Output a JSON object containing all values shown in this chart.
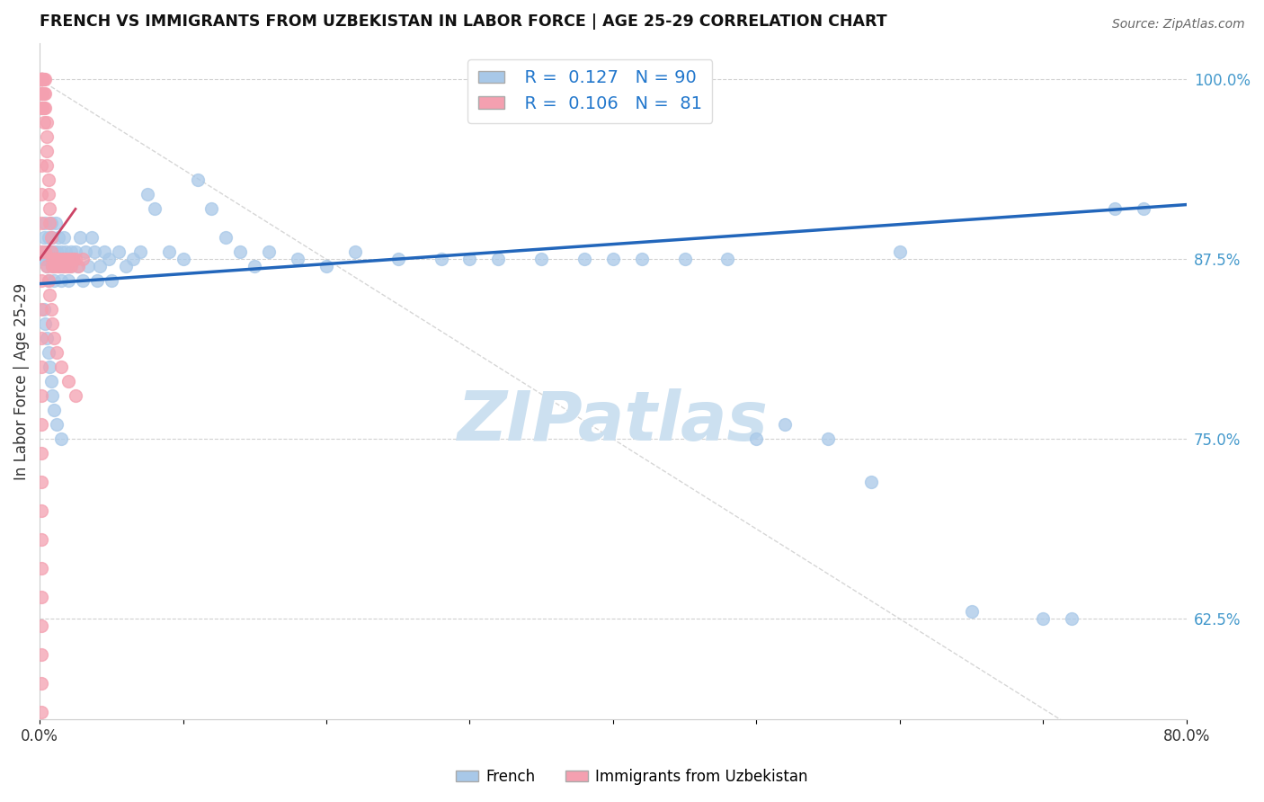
{
  "title": "FRENCH VS IMMIGRANTS FROM UZBEKISTAN IN LABOR FORCE | AGE 25-29 CORRELATION CHART",
  "source": "Source: ZipAtlas.com",
  "ylabel": "In Labor Force | Age 25-29",
  "yticks_right": [
    0.625,
    0.75,
    0.875,
    1.0
  ],
  "ytick_labels_right": [
    "62.5%",
    "75.0%",
    "87.5%",
    "100.0%"
  ],
  "legend_french_R": "0.127",
  "legend_french_N": "90",
  "legend_uzbek_R": "0.106",
  "legend_uzbek_N": "81",
  "french_color": "#a8c8e8",
  "uzbek_color": "#f4a0b0",
  "french_line_color": "#2266bb",
  "uzbek_line_color": "#cc4466",
  "watermark": "ZIPatlas",
  "watermark_color": "#cce0f0",
  "ref_line_color": "#cccccc",
  "ymin": 0.555,
  "ymax": 1.025,
  "xmin": 0.0,
  "xmax": 0.8,
  "french_line_x0": 0.0,
  "french_line_y0": 0.858,
  "french_line_x1": 0.8,
  "french_line_y1": 0.913,
  "uzbek_line_x0": 0.0,
  "uzbek_line_y0": 0.875,
  "uzbek_line_x1": 0.025,
  "uzbek_line_y1": 0.91,
  "french_pts_x": [
    0.002,
    0.003,
    0.003,
    0.004,
    0.004,
    0.005,
    0.005,
    0.006,
    0.006,
    0.007,
    0.007,
    0.008,
    0.008,
    0.009,
    0.009,
    0.01,
    0.01,
    0.011,
    0.012,
    0.013,
    0.014,
    0.015,
    0.015,
    0.016,
    0.017,
    0.018,
    0.02,
    0.021,
    0.022,
    0.023,
    0.025,
    0.026,
    0.028,
    0.03,
    0.032,
    0.034,
    0.036,
    0.038,
    0.04,
    0.042,
    0.045,
    0.048,
    0.05,
    0.055,
    0.06,
    0.065,
    0.07,
    0.075,
    0.08,
    0.09,
    0.1,
    0.11,
    0.12,
    0.13,
    0.14,
    0.15,
    0.16,
    0.18,
    0.2,
    0.22,
    0.25,
    0.28,
    0.3,
    0.32,
    0.35,
    0.38,
    0.4,
    0.42,
    0.45,
    0.48,
    0.5,
    0.52,
    0.55,
    0.58,
    0.6,
    0.65,
    0.7,
    0.72,
    0.003,
    0.004,
    0.005,
    0.006,
    0.007,
    0.008,
    0.009,
    0.01,
    0.012,
    0.015,
    0.75,
    0.77
  ],
  "french_pts_y": [
    0.88,
    0.89,
    0.875,
    0.9,
    0.875,
    0.88,
    0.87,
    0.89,
    0.86,
    0.88,
    0.875,
    0.9,
    0.88,
    0.89,
    0.87,
    0.86,
    0.88,
    0.9,
    0.88,
    0.89,
    0.87,
    0.86,
    0.88,
    0.87,
    0.89,
    0.88,
    0.86,
    0.87,
    0.88,
    0.875,
    0.88,
    0.87,
    0.89,
    0.86,
    0.88,
    0.87,
    0.89,
    0.88,
    0.86,
    0.87,
    0.88,
    0.875,
    0.86,
    0.88,
    0.87,
    0.875,
    0.88,
    0.92,
    0.91,
    0.88,
    0.875,
    0.93,
    0.91,
    0.89,
    0.88,
    0.87,
    0.88,
    0.875,
    0.87,
    0.88,
    0.875,
    0.875,
    0.875,
    0.875,
    0.875,
    0.875,
    0.875,
    0.875,
    0.875,
    0.875,
    0.75,
    0.76,
    0.75,
    0.72,
    0.88,
    0.63,
    0.625,
    0.625,
    0.84,
    0.83,
    0.82,
    0.81,
    0.8,
    0.79,
    0.78,
    0.77,
    0.76,
    0.75,
    0.91,
    0.91
  ],
  "uzbek_pts_x": [
    0.001,
    0.001,
    0.001,
    0.001,
    0.001,
    0.001,
    0.001,
    0.001,
    0.002,
    0.002,
    0.002,
    0.002,
    0.002,
    0.003,
    0.003,
    0.003,
    0.003,
    0.004,
    0.004,
    0.004,
    0.005,
    0.005,
    0.005,
    0.005,
    0.006,
    0.006,
    0.007,
    0.007,
    0.008,
    0.008,
    0.009,
    0.009,
    0.01,
    0.01,
    0.011,
    0.012,
    0.013,
    0.014,
    0.015,
    0.016,
    0.017,
    0.018,
    0.019,
    0.02,
    0.021,
    0.022,
    0.023,
    0.025,
    0.027,
    0.03,
    0.001,
    0.001,
    0.001,
    0.001,
    0.001,
    0.001,
    0.001,
    0.001,
    0.001,
    0.001,
    0.001,
    0.001,
    0.001,
    0.001,
    0.001,
    0.001,
    0.001,
    0.001,
    0.001,
    0.001,
    0.004,
    0.005,
    0.006,
    0.007,
    0.008,
    0.009,
    0.01,
    0.012,
    0.015,
    0.02,
    0.025
  ],
  "uzbek_pts_y": [
    1.0,
    1.0,
    1.0,
    1.0,
    1.0,
    1.0,
    0.99,
    0.98,
    1.0,
    1.0,
    1.0,
    0.99,
    0.98,
    1.0,
    0.99,
    0.98,
    0.97,
    1.0,
    0.99,
    0.98,
    0.97,
    0.96,
    0.95,
    0.94,
    0.93,
    0.92,
    0.91,
    0.9,
    0.89,
    0.88,
    0.875,
    0.87,
    0.875,
    0.87,
    0.875,
    0.87,
    0.875,
    0.87,
    0.875,
    0.87,
    0.875,
    0.87,
    0.875,
    0.87,
    0.875,
    0.87,
    0.875,
    0.875,
    0.87,
    0.875,
    0.94,
    0.92,
    0.9,
    0.88,
    0.86,
    0.84,
    0.82,
    0.8,
    0.78,
    0.76,
    0.74,
    0.72,
    0.7,
    0.68,
    0.66,
    0.64,
    0.62,
    0.6,
    0.58,
    0.56,
    0.88,
    0.87,
    0.86,
    0.85,
    0.84,
    0.83,
    0.82,
    0.81,
    0.8,
    0.79,
    0.78
  ]
}
